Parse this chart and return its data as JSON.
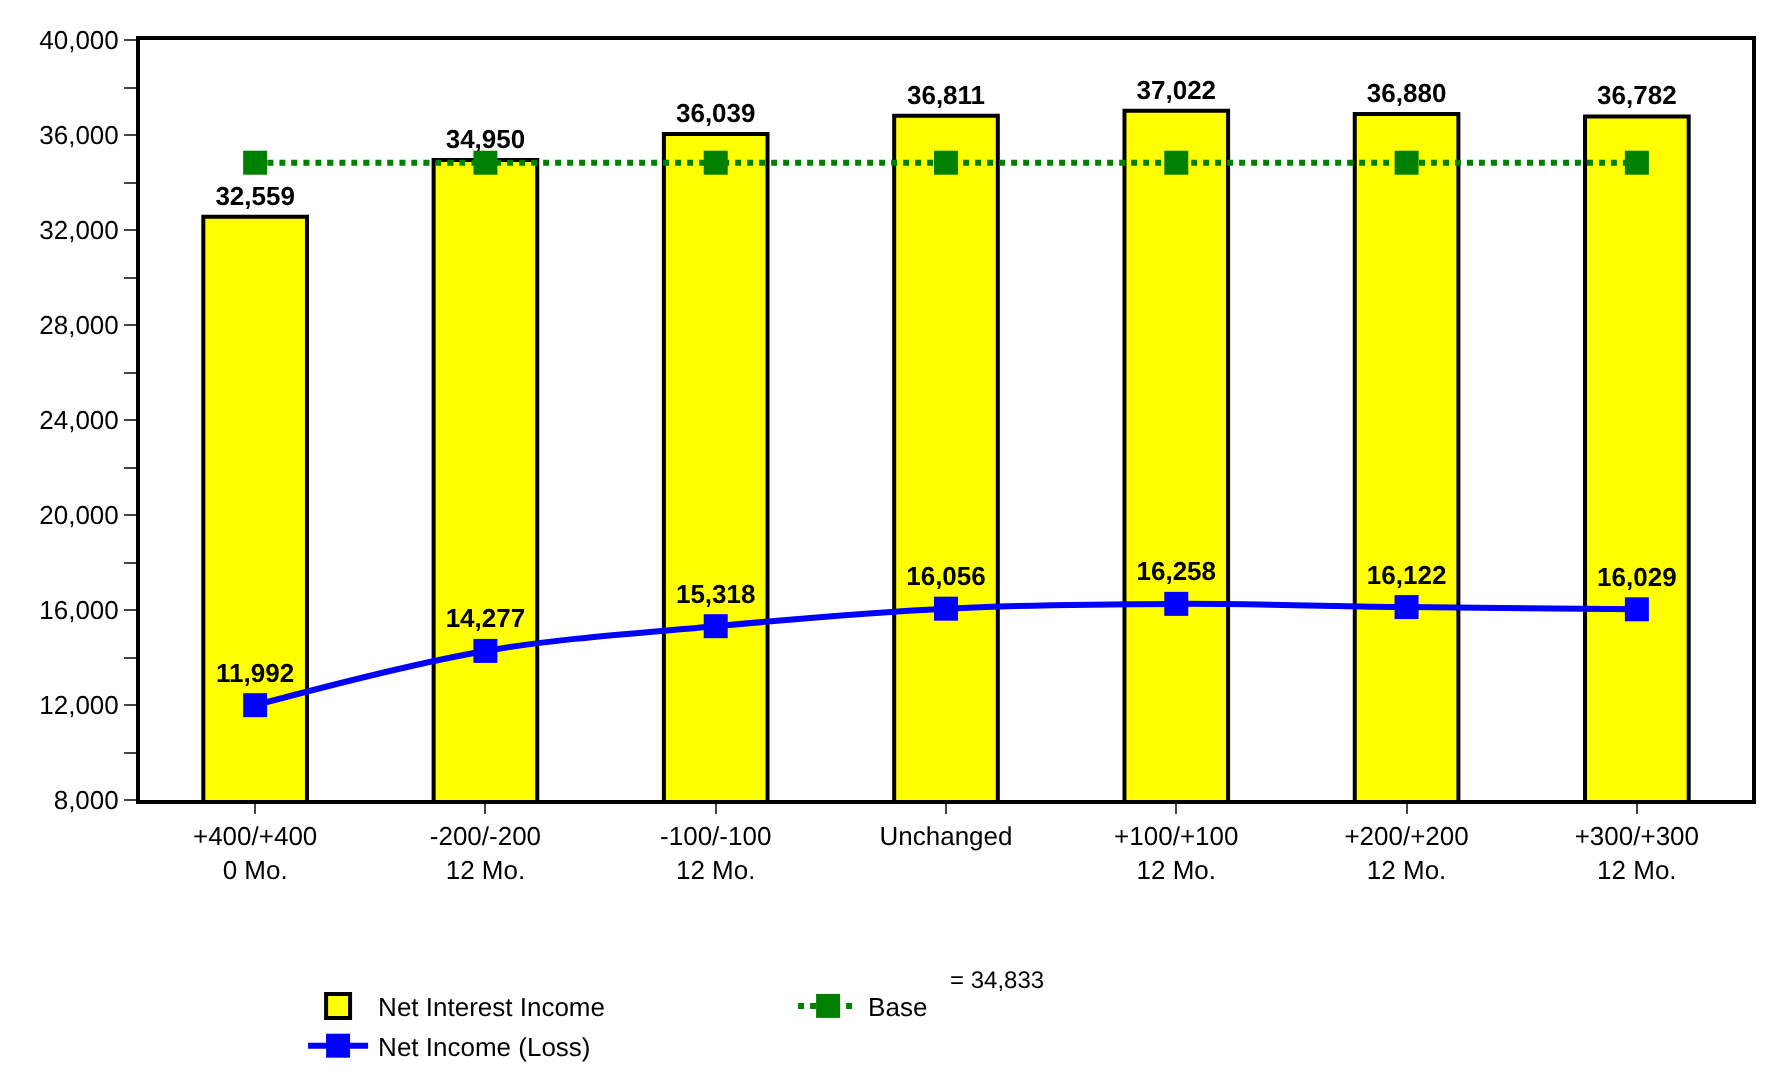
{
  "chart_data": {
    "type": "bar",
    "categories": [
      "+400/+400\n0 Mo.",
      "-200/-200\n12 Mo.",
      "-100/-100\n12 Mo.",
      "Unchanged",
      "+100/+100\n12 Mo.",
      "+200/+200\n12 Mo.",
      "+300/+300\n12 Mo."
    ],
    "series": [
      {
        "name": "Net Interest Income",
        "color": "#ffff00",
        "values": [
          32559,
          34950,
          36039,
          36811,
          37022,
          36880,
          36782
        ],
        "value_labels": [
          "32,559",
          "34,950",
          "36,039",
          "36,811",
          "37,022",
          "36,880",
          "36,782"
        ]
      },
      {
        "name": "Base",
        "type": "line",
        "color": "#008000",
        "marker": "square",
        "line_style": "dotted",
        "values": [
          34833,
          34833,
          34833,
          34833,
          34833,
          34833,
          34833
        ]
      },
      {
        "name": "Net Income (Loss)",
        "type": "line",
        "color": "#0000ff",
        "marker": "square",
        "line_style": "solid",
        "values": [
          11992,
          14277,
          15318,
          16056,
          16258,
          16122,
          16029
        ],
        "value_labels": [
          "11,992",
          "14,277",
          "15,318",
          "16,056",
          "16,258",
          "16,122",
          "16,029"
        ]
      }
    ],
    "annotations": [
      "= 34,833"
    ],
    "ylim": [
      8000,
      40000
    ],
    "yticks": [
      {
        "value": 8000,
        "label": "8,000"
      },
      {
        "value": 10000,
        "label": null
      },
      {
        "value": 12000,
        "label": "12,000"
      },
      {
        "value": 14000,
        "label": null
      },
      {
        "value": 16000,
        "label": "16,000"
      },
      {
        "value": 18000,
        "label": null
      },
      {
        "value": 20000,
        "label": "20,000"
      },
      {
        "value": 22000,
        "label": null
      },
      {
        "value": 24000,
        "label": "24,000"
      },
      {
        "value": 26000,
        "label": null
      },
      {
        "value": 28000,
        "label": "28,000"
      },
      {
        "value": 30000,
        "label": null
      },
      {
        "value": 32000,
        "label": "32,000"
      },
      {
        "value": 34000,
        "label": null
      },
      {
        "value": 36000,
        "label": "36,000"
      },
      {
        "value": 38000,
        "label": null
      },
      {
        "value": 40000,
        "label": "40,000"
      }
    ],
    "grid": false,
    "legend": "bottom"
  }
}
